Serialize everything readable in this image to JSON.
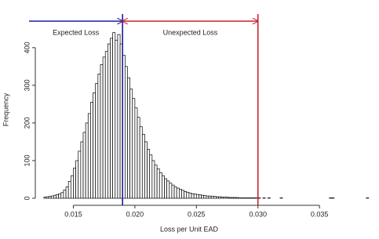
{
  "chart_data": {
    "type": "histogram",
    "xlabel": "Loss per Unit EAD",
    "ylabel": "Frequency",
    "bins": [
      0.0126,
      0.0128,
      0.013,
      0.0132,
      0.0134,
      0.0136,
      0.0138,
      0.014,
      0.0142,
      0.0144,
      0.0146,
      0.0148,
      0.015,
      0.0152,
      0.0154,
      0.0156,
      0.0158,
      0.016,
      0.0162,
      0.0164,
      0.0166,
      0.0168,
      0.017,
      0.0172,
      0.0174,
      0.0176,
      0.0178,
      0.018,
      0.0182,
      0.0184,
      0.0186,
      0.0188,
      0.019,
      0.0192,
      0.0194,
      0.0196,
      0.0198,
      0.02,
      0.0202,
      0.0204,
      0.0206,
      0.0208,
      0.021,
      0.0212,
      0.0214,
      0.0216,
      0.0218,
      0.022,
      0.0222,
      0.0224,
      0.0226,
      0.0228,
      0.023,
      0.0232,
      0.0234,
      0.0236,
      0.0238,
      0.024,
      0.0242,
      0.0244,
      0.0246,
      0.0248,
      0.025,
      0.0252,
      0.0254,
      0.0256,
      0.0258,
      0.026,
      0.0262,
      0.0264,
      0.0266,
      0.0268,
      0.027,
      0.0272,
      0.0274,
      0.0276,
      0.0278,
      0.028,
      0.0282,
      0.0284,
      0.0286,
      0.0288,
      0.029,
      0.0292,
      0.0294,
      0.0296,
      0.0298,
      0.03,
      0.0302,
      0.0304,
      0.0306,
      0.0308,
      0.031,
      0.0312,
      0.0314,
      0.0316,
      0.0318,
      0.032,
      0.0322,
      0.0324,
      0.0326,
      0.0328,
      0.033,
      0.0332,
      0.0334,
      0.0336,
      0.0338,
      0.034,
      0.0342,
      0.0344,
      0.0346,
      0.0348,
      0.035,
      0.0352,
      0.0354,
      0.0356,
      0.0358,
      0.036,
      0.0362,
      0.0364,
      0.0366,
      0.0368,
      0.037,
      0.0372,
      0.0374,
      0.0376,
      0.0378,
      0.038,
      0.0382,
      0.0384,
      0.0386,
      0.0388,
      0.039
    ],
    "counts": [
      3,
      4,
      5,
      6,
      8,
      10,
      12,
      15,
      22,
      30,
      45,
      60,
      80,
      100,
      125,
      150,
      175,
      200,
      225,
      255,
      280,
      305,
      330,
      355,
      375,
      390,
      410,
      425,
      440,
      420,
      435,
      410,
      380,
      350,
      320,
      290,
      265,
      240,
      215,
      190,
      170,
      150,
      130,
      115,
      100,
      88,
      78,
      68,
      60,
      52,
      46,
      40,
      35,
      30,
      27,
      24,
      21,
      18,
      16,
      14,
      12,
      11,
      10,
      9,
      8,
      7,
      6,
      6,
      5,
      5,
      4,
      4,
      3,
      3,
      3,
      2,
      2,
      2,
      2,
      1,
      1,
      1,
      1,
      1,
      1,
      1,
      1,
      1,
      0,
      1,
      0,
      1,
      0,
      0,
      0,
      0,
      1,
      0,
      0,
      0,
      0,
      0,
      0,
      0,
      0,
      0,
      0,
      0,
      0,
      0,
      0,
      0,
      0,
      0,
      0,
      0,
      1,
      1,
      0,
      0,
      0,
      0,
      0,
      0,
      0,
      0,
      0,
      0,
      0,
      0,
      0,
      1
    ],
    "color": "#ffffff",
    "edgecolor": "#000000",
    "xlim": [
      0.0114,
      0.0392
    ],
    "xticks": [
      0.015,
      {
        "value": 0.02,
        "label": "0.020"
      },
      0.025,
      {
        "value": 0.03,
        "label": "0.030"
      },
      0.035
    ],
    "ylim": [
      0,
      460
    ],
    "yticks": [
      0,
      100,
      200,
      300,
      400
    ],
    "lines": [
      {
        "x": 0.019,
        "color": "#1c1ca6",
        "label": "Expected Loss"
      },
      {
        "x": 0.03,
        "color": "#c8202e",
        "label": "Unexpected Loss"
      }
    ]
  }
}
